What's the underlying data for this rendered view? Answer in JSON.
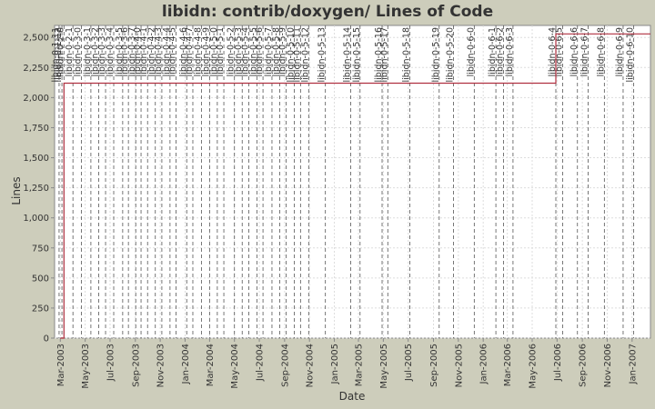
{
  "chart_data": {
    "type": "line",
    "title": "libidn: contrib/doxygen/ Lines of Code",
    "xlabel": "Date",
    "ylabel": "Lines",
    "ylim": [
      0,
      2600
    ],
    "xlim": [
      "2003-02-15",
      "2007-02-15"
    ],
    "y_ticks": [
      "0",
      "250",
      "500",
      "750",
      "1,000",
      "1,250",
      "1,500",
      "1,750",
      "2,000",
      "2,250",
      "2,500"
    ],
    "x_ticks": [
      "Mar-2003",
      "May-2003",
      "Jul-2003",
      "Sep-2003",
      "Nov-2003",
      "Jan-2004",
      "Mar-2004",
      "May-2004",
      "Jul-2004",
      "Sep-2004",
      "Nov-2004",
      "Jan-2005",
      "Mar-2005",
      "May-2005",
      "Jul-2005",
      "Sep-2005",
      "Nov-2005",
      "Jan-2006",
      "Mar-2006",
      "May-2006",
      "Jul-2006",
      "Sep-2006",
      "Nov-2006",
      "Jan-2007"
    ],
    "grid": true,
    "line_color": "#b03040",
    "series": [
      {
        "x": [
          "2003-03-01",
          "2003-03-10",
          "2003-03-10",
          "2006-06-28",
          "2006-06-28",
          "2007-02-15"
        ],
        "values": [
          0,
          0,
          2120,
          2120,
          2530,
          2530
        ]
      }
    ],
    "tags": [
      {
        "date": "2003-02-26",
        "label": "libidn-0-1-11"
      },
      {
        "date": "2003-03-05",
        "label": "libidn-0-1-12"
      },
      {
        "date": "2003-03-10",
        "label": "libidn-0-2-0"
      },
      {
        "date": "2003-04-01",
        "label": "libidn-0-2-1"
      },
      {
        "date": "2003-04-22",
        "label": "libidn-0-3-0"
      },
      {
        "date": "2003-05-15",
        "label": "libidn-0-3-1"
      },
      {
        "date": "2003-06-03",
        "label": "libidn-0-3-2"
      },
      {
        "date": "2003-06-20",
        "label": "libidn-0-3-3"
      },
      {
        "date": "2003-07-10",
        "label": "libidn-0-3-4"
      },
      {
        "date": "2003-08-01",
        "label": "libidn-0-3-5"
      },
      {
        "date": "2003-08-15",
        "label": "libidn-0-3-6"
      },
      {
        "date": "2003-09-02",
        "label": "libidn-0-3-7"
      },
      {
        "date": "2003-09-15",
        "label": "libidn-0-4-0"
      },
      {
        "date": "2003-10-01",
        "label": "libidn-0-4-1"
      },
      {
        "date": "2003-10-20",
        "label": "libidn-0-4-2"
      },
      {
        "date": "2003-11-05",
        "label": "libidn-0-4-3"
      },
      {
        "date": "2003-11-25",
        "label": "libidn-0-4-4"
      },
      {
        "date": "2003-12-10",
        "label": "libidn-0-4-5"
      },
      {
        "date": "2004-01-05",
        "label": "libidn-0-4-6"
      },
      {
        "date": "2004-01-20",
        "label": "libidn-0-4-7"
      },
      {
        "date": "2004-02-10",
        "label": "libidn-0-4-8"
      },
      {
        "date": "2004-03-01",
        "label": "libidn-0-4-9"
      },
      {
        "date": "2004-03-20",
        "label": "libidn-0-5-0"
      },
      {
        "date": "2004-04-05",
        "label": "libidn-0-5-1"
      },
      {
        "date": "2004-05-01",
        "label": "libidn-0-5-2"
      },
      {
        "date": "2004-05-20",
        "label": "libidn-0-5-3"
      },
      {
        "date": "2004-06-05",
        "label": "libidn-0-5-4"
      },
      {
        "date": "2004-06-25",
        "label": "libidn-0-5-5"
      },
      {
        "date": "2004-07-10",
        "label": "libidn-0-5-6"
      },
      {
        "date": "2004-08-01",
        "label": "libidn-0-5-7"
      },
      {
        "date": "2004-08-20",
        "label": "libidn-0-5-8"
      },
      {
        "date": "2004-09-05",
        "label": "libidn-0-5-9"
      },
      {
        "date": "2004-09-25",
        "label": "libidn-0-5-10"
      },
      {
        "date": "2004-10-10",
        "label": "libidn-0-5-11"
      },
      {
        "date": "2004-10-30",
        "label": "libidn-0-5-12"
      },
      {
        "date": "2004-12-10",
        "label": "libidn-0-5-13"
      },
      {
        "date": "2005-02-10",
        "label": "libidn-0-5-14"
      },
      {
        "date": "2005-03-05",
        "label": "libidn-0-5-15"
      },
      {
        "date": "2005-04-28",
        "label": "libidn-0-5-16"
      },
      {
        "date": "2005-05-12",
        "label": "libidn-0-5-17"
      },
      {
        "date": "2005-07-05",
        "label": "libidn-0-5-18"
      },
      {
        "date": "2005-09-15",
        "label": "libidn-0-5-19"
      },
      {
        "date": "2005-10-20",
        "label": "libidn-0-5-20"
      },
      {
        "date": "2005-12-10",
        "label": "libidn-0-6-0"
      },
      {
        "date": "2006-02-01",
        "label": "libidn-0-6-1"
      },
      {
        "date": "2006-02-20",
        "label": "libidn-0-6-2"
      },
      {
        "date": "2006-03-15",
        "label": "libidn-0-6-3"
      },
      {
        "date": "2006-06-28",
        "label": "libidn-0-6-4"
      },
      {
        "date": "2006-07-15",
        "label": "libidn-0-6-5"
      },
      {
        "date": "2006-08-20",
        "label": "libidn-0-6-6"
      },
      {
        "date": "2006-09-15",
        "label": "libidn-0-6-7"
      },
      {
        "date": "2006-10-25",
        "label": "libidn-0-6-8"
      },
      {
        "date": "2006-12-10",
        "label": "libidn-0-6-9"
      },
      {
        "date": "2007-01-05",
        "label": "libidn-0-6-10"
      }
    ]
  }
}
